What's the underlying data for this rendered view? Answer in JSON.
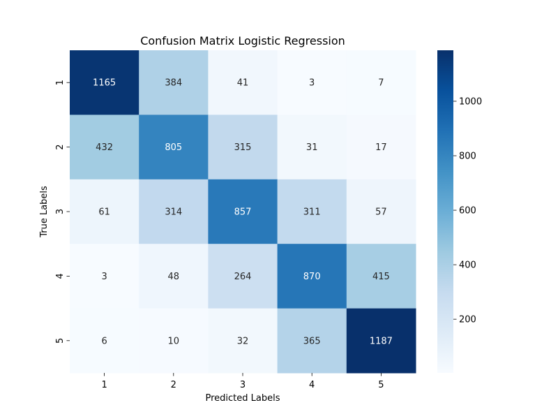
{
  "chart_data": {
    "type": "heatmap",
    "title": "Confusion Matrix Logistic Regression",
    "xlabel": "Predicted Labels",
    "ylabel": "True Labels",
    "x_categories": [
      "1",
      "2",
      "3",
      "4",
      "5"
    ],
    "y_categories": [
      "1",
      "2",
      "3",
      "4",
      "5"
    ],
    "values": [
      [
        1165,
        384,
        41,
        3,
        7
      ],
      [
        432,
        805,
        315,
        31,
        17
      ],
      [
        61,
        314,
        857,
        311,
        57
      ],
      [
        3,
        48,
        264,
        870,
        415
      ],
      [
        6,
        10,
        32,
        365,
        1187
      ]
    ],
    "colormap": "Blues",
    "vmin": 3,
    "vmax": 1187,
    "colorbar": {
      "ticks": [
        200,
        400,
        600,
        800,
        1000
      ],
      "tick_labels": [
        "200",
        "400",
        "600",
        "800",
        "1000"
      ]
    },
    "annotation_threshold": 595,
    "colors": {
      "annotation_dark": "#262626",
      "annotation_light": "#ffffff",
      "blues_stops": [
        "#f7fbff",
        "#deebf7",
        "#c6dbef",
        "#9ecae1",
        "#6baed6",
        "#4292c6",
        "#2171b5",
        "#08519c",
        "#08306b"
      ]
    }
  }
}
